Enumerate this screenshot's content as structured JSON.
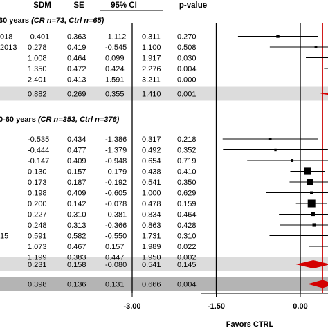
{
  "chart_data": {
    "type": "forest",
    "headers": {
      "sdm": "SDM",
      "se": "SE",
      "ci": "95% CI",
      "p": "p-value"
    },
    "groups": [
      {
        "label_prefix": "30 years",
        "label_italic": "(CR n=73, Ctrl n=65)",
        "studies": [
          {
            "label": "018",
            "sdm": "-0.401",
            "se": "0.363",
            "lo": "-1.112",
            "hi": "0.311",
            "p": "0.270"
          },
          {
            "label": "2013",
            "sdm": "0.278",
            "se": "0.419",
            "lo": "-0.545",
            "hi": "1.100",
            "p": "0.508"
          },
          {
            "label": "",
            "sdm": "1.008",
            "se": "0.464",
            "lo": "0.099",
            "hi": "1.917",
            "p": "0.030"
          },
          {
            "label": "",
            "sdm": "1.350",
            "se": "0.472",
            "lo": "0.424",
            "hi": "2.276",
            "p": "0.004"
          },
          {
            "label": "",
            "sdm": "2.401",
            "se": "0.413",
            "lo": "1.591",
            "hi": "3.211",
            "p": "0.000"
          }
        ],
        "summary": {
          "sdm": "0.882",
          "se": "0.269",
          "lo": "0.355",
          "hi": "1.410",
          "p": "0.001"
        }
      },
      {
        "label_prefix": "0-60 years",
        "label_italic": "(CR n=353, Ctrl n=376)",
        "studies": [
          {
            "label": "",
            "sdm": "-0.535",
            "se": "0.434",
            "lo": "-1.386",
            "hi": "0.317",
            "p": "0.218"
          },
          {
            "label": "",
            "sdm": "-0.444",
            "se": "0.477",
            "lo": "-1.379",
            "hi": "0.492",
            "p": "0.352"
          },
          {
            "label": "",
            "sdm": "-0.147",
            "se": "0.409",
            "lo": "-0.948",
            "hi": "0.654",
            "p": "0.719"
          },
          {
            "label": "",
            "sdm": "0.130",
            "se": "0.157",
            "lo": "-0.179",
            "hi": "0.438",
            "p": "0.410"
          },
          {
            "label": "",
            "sdm": "0.173",
            "se": "0.187",
            "lo": "-0.192",
            "hi": "0.541",
            "p": "0.350"
          },
          {
            "label": "",
            "sdm": "0.198",
            "se": "0.409",
            "lo": "-0.605",
            "hi": "1.000",
            "p": "0.629"
          },
          {
            "label": "",
            "sdm": "0.200",
            "se": "0.142",
            "lo": "-0.078",
            "hi": "0.478",
            "p": "0.159"
          },
          {
            "label": "",
            "sdm": "0.227",
            "se": "0.310",
            "lo": "-0.381",
            "hi": "0.834",
            "p": "0.464"
          },
          {
            "label": "",
            "sdm": "0.248",
            "se": "0.313",
            "lo": "-0.366",
            "hi": "0.863",
            "p": "0.428"
          },
          {
            "label": "15",
            "sdm": "0.591",
            "se": "0.582",
            "lo": "-0.550",
            "hi": "1.731",
            "p": "0.310"
          },
          {
            "label": "",
            "sdm": "1.073",
            "se": "0.467",
            "lo": "0.157",
            "hi": "1.989",
            "p": "0.022"
          },
          {
            "label": "",
            "sdm": "1.199",
            "se": "0.383",
            "lo": "0.447",
            "hi": "1.950",
            "p": "0.002"
          }
        ],
        "summary": {
          "sdm": "0.231",
          "se": "0.158",
          "lo": "-0.080",
          "hi": "0.541",
          "p": "0.145"
        }
      }
    ],
    "overall": {
      "sdm": "0.398",
      "se": "0.136",
      "lo": "0.131",
      "hi": "0.666",
      "p": "0.004"
    },
    "axis": {
      "ticks": [
        "-3.00",
        "-1.50",
        "0.00"
      ],
      "tick_values": [
        -3.0,
        -1.5,
        0.0
      ],
      "xlabel": "Favors CTRL"
    },
    "colors": {
      "reference_line": "#cc0000",
      "diamond": "#d40000",
      "summary_band": "#dcdcdc",
      "overall_band": "#b4b4b4",
      "marker": "#000000"
    }
  }
}
